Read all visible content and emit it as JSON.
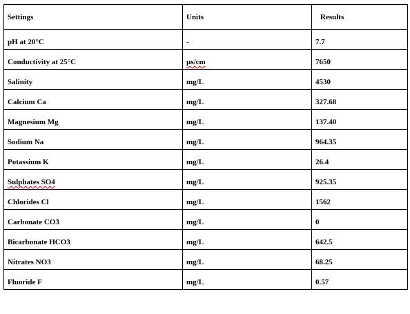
{
  "table": {
    "headers": [
      "Settings",
      "Units",
      "Results"
    ],
    "rows": [
      {
        "setting": "pH at 20°C",
        "unit": "-",
        "result": "7.7"
      },
      {
        "setting": "Conductivity at 25°C",
        "unit": "µs/cm",
        "result": "7650"
      },
      {
        "setting": "Salinity",
        "unit": "mg/L",
        "result": "4530"
      },
      {
        "setting": "Calcium Ca",
        "unit": "mg/L",
        "result": "327.68"
      },
      {
        "setting": "Magnesium Mg",
        "unit": "mg/L",
        "result": "137.40"
      },
      {
        "setting": "Sodium Na",
        "unit": "mg/L",
        "result": "964.35"
      },
      {
        "setting": "Potassium K",
        "unit": "mg/L",
        "result": "26.4"
      },
      {
        "setting": "Sulphates SO4",
        "unit": "mg/L",
        "result": "925.35"
      },
      {
        "setting": "Chlorides Cl",
        "unit": "mg/L",
        "result": "1562"
      },
      {
        "setting": "Carbonate CO3",
        "unit": "mg/L",
        "result": "0"
      },
      {
        "setting": "Bicarbonate HCO3",
        "unit": "mg/L",
        "result": "642.5"
      },
      {
        "setting": "Nitrates NO3",
        "unit": "mg/L",
        "result": "68.25"
      },
      {
        "setting": "Fluoride F",
        "unit": "mg/L",
        "result": "0.57"
      }
    ]
  },
  "colors": {
    "border": "#000000",
    "spellcheck_underline": "#c00000"
  }
}
